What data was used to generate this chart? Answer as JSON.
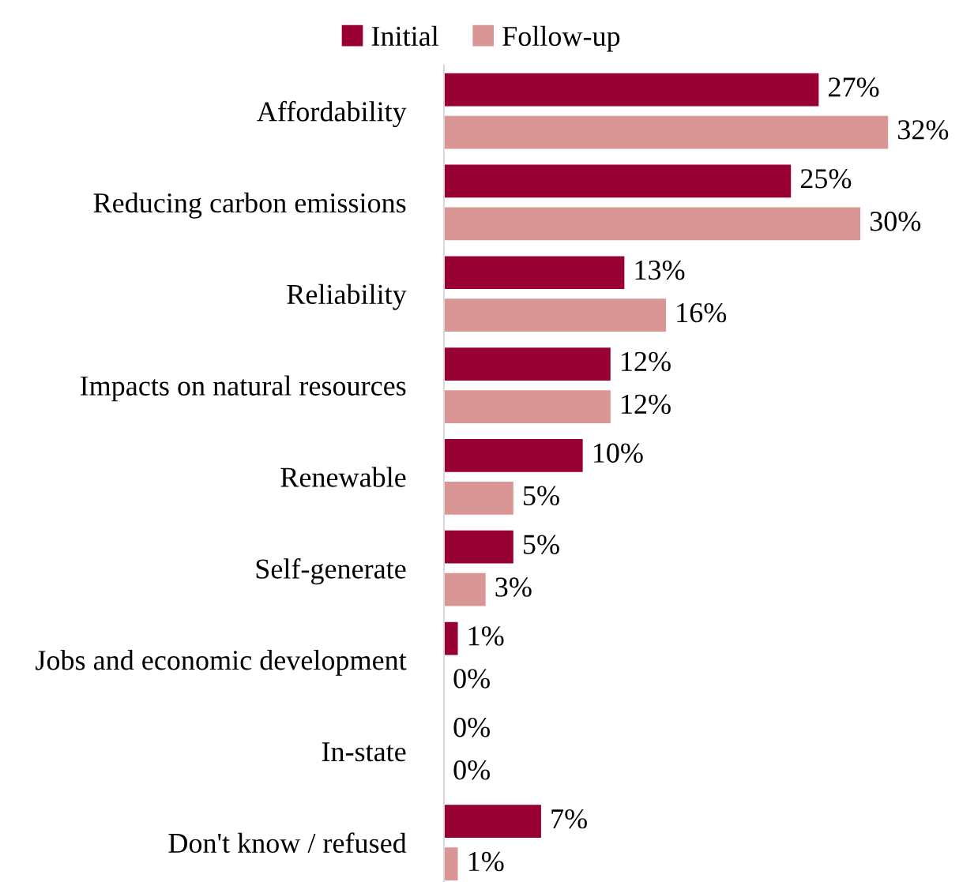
{
  "chart_data": {
    "type": "bar",
    "orientation": "horizontal",
    "legend": "top",
    "grid": false,
    "categories": [
      "Affordability",
      "Reducing carbon emissions",
      "Reliability",
      "Impacts on natural resources",
      "Renewable",
      "Self-generate",
      "Jobs and economic development",
      "In-state",
      "Don't know / refused"
    ],
    "series": [
      {
        "name": "Initial",
        "color": "#990033",
        "values": [
          27,
          25,
          13,
          12,
          10,
          5,
          1,
          0,
          7
        ],
        "value_labels": [
          "27%",
          "25%",
          "13%",
          "12%",
          "10%",
          "5%",
          "1%",
          "0%",
          "7%"
        ]
      },
      {
        "name": "Follow-up",
        "color": "#d99694",
        "values": [
          32,
          30,
          16,
          12,
          5,
          3,
          0,
          0,
          1
        ],
        "value_labels": [
          "32%",
          "30%",
          "16%",
          "12%",
          "5%",
          "3%",
          "0%",
          "0%",
          "1%"
        ]
      }
    ]
  }
}
